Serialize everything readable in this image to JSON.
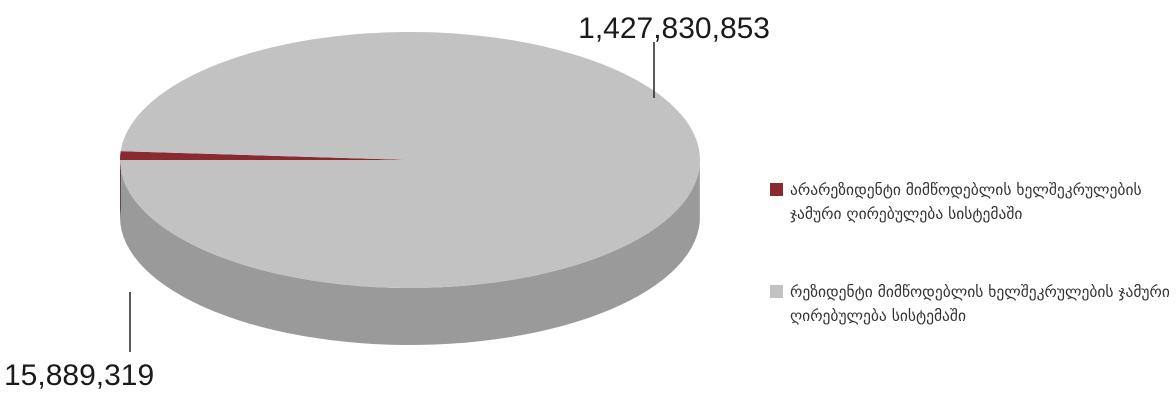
{
  "chart_data": {
    "type": "pie",
    "title": "",
    "style": "3d",
    "legend_position": "right",
    "slices": [
      {
        "label": "არარეზიდენტი მიმწოდებლის ხელშეკრულების ჯამური ღირებულება სისტემაში",
        "value": 15889319,
        "value_label": "15,889,319",
        "color": "#8b2a2e",
        "side_color": "#5e1519"
      },
      {
        "label": "რეზიდენტი მიმწოდებლის ხელშეკრულების ჯამური ღირებულება სისტემაში",
        "value": 1427830853,
        "value_label": "1,427,830,853",
        "color": "#c2c2c2",
        "side_color": "#9a9a9a"
      }
    ]
  }
}
